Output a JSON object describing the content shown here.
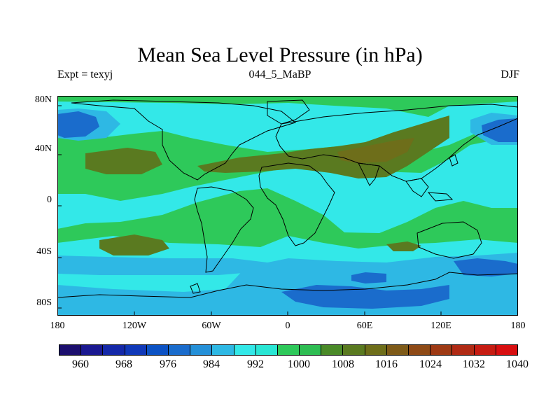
{
  "title": "Mean Sea Level Pressure (in hPa)",
  "subtitle_left": "Expt = texyj",
  "subtitle_center": "044_5_MaBP",
  "subtitle_right": "DJF",
  "map": {
    "projection": "equirectangular",
    "lon_range": [
      -180,
      180
    ],
    "lat_range": [
      -90,
      90
    ],
    "lat_ticks": [
      {
        "value": 80,
        "label": "80N"
      },
      {
        "value": 40,
        "label": "40N"
      },
      {
        "value": 0,
        "label": "0"
      },
      {
        "value": -40,
        "label": "40S"
      },
      {
        "value": -80,
        "label": "80S"
      }
    ],
    "lon_ticks": [
      {
        "value": -180,
        "label": "180"
      },
      {
        "value": -120,
        "label": "120W"
      },
      {
        "value": -60,
        "label": "60W"
      },
      {
        "value": 0,
        "label": "0"
      },
      {
        "value": 60,
        "label": "60E"
      },
      {
        "value": 120,
        "label": "120E"
      },
      {
        "value": 180,
        "label": "180"
      }
    ],
    "coastline_color": "#000000"
  },
  "colorbar": {
    "colors": [
      "#1c0f6e",
      "#1a1890",
      "#1428a8",
      "#1038b8",
      "#0c52c4",
      "#1a6ccc",
      "#2590d8",
      "#2eb8e4",
      "#33e8e8",
      "#29e6d4",
      "#2ec95a",
      "#2ebd52",
      "#4a8a28",
      "#5a7a20",
      "#6e6e1a",
      "#7e5a18",
      "#8e4a16",
      "#9e3a14",
      "#b02a14",
      "#c61c12",
      "#d80f10"
    ],
    "labels": [
      {
        "value": 960,
        "label": "960"
      },
      {
        "value": 968,
        "label": "968"
      },
      {
        "value": 976,
        "label": "976"
      },
      {
        "value": 984,
        "label": "984"
      },
      {
        "value": 992,
        "label": "992"
      },
      {
        "value": 1000,
        "label": "1000"
      },
      {
        "value": 1008,
        "label": "1008"
      },
      {
        "value": 1016,
        "label": "1016"
      },
      {
        "value": 1024,
        "label": "1024"
      },
      {
        "value": 1032,
        "label": "1032"
      },
      {
        "value": 1040,
        "label": "1040"
      }
    ]
  }
}
